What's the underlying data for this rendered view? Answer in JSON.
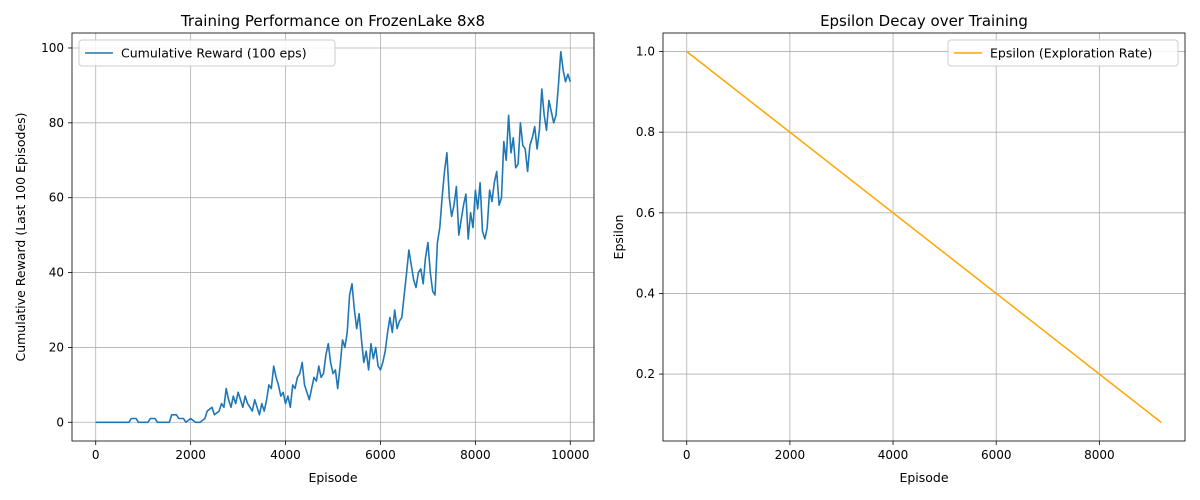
{
  "chart_data": [
    {
      "type": "line",
      "title": "Training Performance on FrozenLake 8x8",
      "xlabel": "Episode",
      "ylabel": "Cumulative Reward (Last 100 Episodes)",
      "xlim": [
        -500,
        10500
      ],
      "ylim": [
        -5,
        104
      ],
      "xticks": [
        0,
        2000,
        4000,
        6000,
        8000,
        10000
      ],
      "yticks": [
        0,
        20,
        40,
        60,
        80,
        100
      ],
      "grid": true,
      "legend_position": "upper left",
      "series": [
        {
          "name": "Cumulative Reward (100 eps)",
          "color": "#1f77b4",
          "x": [
            0,
            700,
            750,
            850,
            900,
            1100,
            1150,
            1250,
            1300,
            1550,
            1600,
            1700,
            1750,
            1850,
            1900,
            2000,
            2100,
            2200,
            2300,
            2350,
            2450,
            2500,
            2600,
            2650,
            2700,
            2750,
            2800,
            2850,
            2900,
            2950,
            3000,
            3050,
            3100,
            3150,
            3200,
            3250,
            3300,
            3350,
            3400,
            3450,
            3500,
            3550,
            3600,
            3650,
            3700,
            3750,
            3800,
            3850,
            3900,
            3950,
            4000,
            4050,
            4100,
            4150,
            4200,
            4250,
            4300,
            4350,
            4400,
            4450,
            4500,
            4550,
            4600,
            4650,
            4700,
            4750,
            4800,
            4850,
            4900,
            4950,
            5000,
            5050,
            5100,
            5150,
            5200,
            5250,
            5300,
            5350,
            5400,
            5450,
            5500,
            5550,
            5600,
            5650,
            5700,
            5750,
            5800,
            5850,
            5900,
            5950,
            6000,
            6050,
            6100,
            6150,
            6200,
            6250,
            6300,
            6350,
            6400,
            6450,
            6500,
            6550,
            6600,
            6650,
            6700,
            6750,
            6800,
            6850,
            6900,
            6950,
            7000,
            7050,
            7100,
            7150,
            7200,
            7250,
            7300,
            7350,
            7400,
            7450,
            7500,
            7550,
            7600,
            7650,
            7700,
            7750,
            7800,
            7850,
            7900,
            7950,
            8000,
            8050,
            8100,
            8150,
            8200,
            8250,
            8300,
            8350,
            8400,
            8450,
            8500,
            8550,
            8600,
            8650,
            8700,
            8750,
            8800,
            8850,
            8900,
            8950,
            9000,
            9050,
            9100,
            9150,
            9200,
            9250,
            9300,
            9350,
            9400,
            9450,
            9500,
            9550,
            9600,
            9650,
            9700,
            9750,
            9800,
            9850,
            9900,
            9950,
            10000
          ],
          "y": [
            0,
            0,
            1,
            1,
            0,
            0,
            1,
            1,
            0,
            0,
            2,
            2,
            1,
            1,
            0,
            1,
            0,
            0,
            1,
            3,
            4,
            2,
            3,
            5,
            4,
            9,
            6,
            4,
            7,
            5,
            8,
            6,
            4,
            7,
            5,
            4,
            3,
            6,
            4,
            2,
            5,
            3,
            6,
            10,
            9,
            15,
            12,
            10,
            7,
            8,
            5,
            7,
            4,
            10,
            9,
            12,
            13,
            16,
            10,
            8,
            6,
            9,
            12,
            11,
            15,
            12,
            13,
            18,
            21,
            16,
            13,
            14,
            9,
            15,
            22,
            20,
            24,
            34,
            37,
            30,
            25,
            29,
            22,
            16,
            19,
            14,
            21,
            17,
            20,
            15,
            14,
            16,
            19,
            24,
            28,
            24,
            30,
            25,
            27,
            28,
            34,
            40,
            46,
            42,
            38,
            36,
            40,
            41,
            37,
            44,
            48,
            40,
            35,
            34,
            48,
            52,
            60,
            67,
            72,
            60,
            55,
            58,
            63,
            50,
            54,
            58,
            61,
            49,
            56,
            52,
            62,
            57,
            64,
            51,
            49,
            52,
            62,
            59,
            64,
            67,
            58,
            60,
            75,
            70,
            82,
            72,
            76,
            68,
            69,
            80,
            74,
            73,
            67,
            74,
            76,
            79,
            73,
            78,
            89,
            82,
            78,
            86,
            83,
            80,
            82,
            90,
            99,
            94,
            91,
            93,
            91
          ]
        }
      ]
    },
    {
      "type": "line",
      "title": "Epsilon Decay over Training",
      "xlabel": "Episode",
      "ylabel": "Epsilon",
      "xlim": [
        -460,
        9660
      ],
      "ylim": [
        0.034,
        1.046
      ],
      "xticks": [
        0,
        2000,
        4000,
        6000,
        8000
      ],
      "yticks": [
        0.2,
        0.4,
        0.6,
        0.8,
        1.0
      ],
      "grid": true,
      "legend_position": "upper right",
      "series": [
        {
          "name": "Epsilon (Exploration Rate)",
          "color": "#ffa500",
          "x": [
            0,
            9200
          ],
          "y": [
            1.0,
            0.08
          ]
        }
      ]
    }
  ]
}
